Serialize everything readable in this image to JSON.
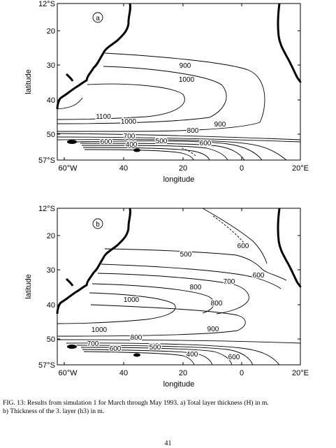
{
  "figure": {
    "maps": [
      {
        "panel_label": "a",
        "y_axis_title": "latitude",
        "x_axis_title": "longitude",
        "y_tick_labels": [
          "12°S",
          "20",
          "30",
          "40",
          "50",
          "57°S"
        ],
        "x_tick_labels": [
          "60°W",
          "40",
          "20",
          "0",
          "20°E"
        ],
        "contour_labels": [
          "900",
          "1000",
          "1100",
          "1000",
          "800",
          "900",
          "700",
          "600",
          "500",
          "400",
          "600"
        ]
      },
      {
        "panel_label": "b",
        "y_axis_title": "latitude",
        "x_axis_title": "longitude",
        "y_tick_labels": [
          "12°S",
          "20",
          "30",
          "40",
          "50",
          "57°S"
        ],
        "x_tick_labels": [
          "60°W",
          "40",
          "20",
          "0",
          "20°E"
        ],
        "contour_labels": [
          "600",
          "500",
          "600",
          "700",
          "800",
          "800",
          "1000",
          "900",
          "1000",
          "800",
          "700",
          "600",
          "500",
          "400",
          "600"
        ]
      }
    ]
  },
  "caption": {
    "line1": "FIG. 13: Results from simulation 1 for March through May 1993. a) Total layer thickness (H) in m.",
    "line2": "b) Thickness of the 3. layer (h3) in m."
  },
  "page_number": "41"
}
